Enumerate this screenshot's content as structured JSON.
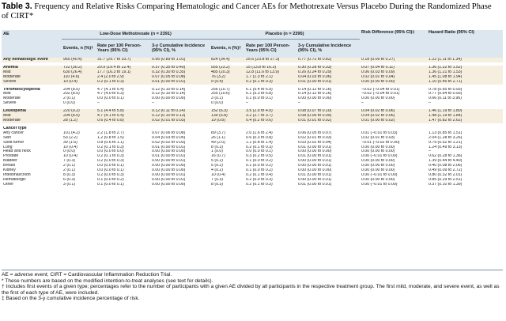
{
  "title": {
    "label": "Table 3.",
    "text": " Frequency and Relative Risks Comparing Hematologic and Cancer AEs for Methotrexate Versus Placebo During the Randomized Phase of CIRT*"
  },
  "header": {
    "ae": "AE",
    "group_mtx": "Low-Dose Methotrexate (n = 2391)",
    "group_placebo": "Placebo (n = 2395)",
    "risk_difference": "Risk Difference (95% CI)‡",
    "hazard_ratio": "Hazard Ratio (95% CI)",
    "events": "Events, n (%)†",
    "rate": "Rate per 100 Person-Years (95% CI)",
    "cumulative": "3-y Cumulative Incidence (95% CI), %"
  },
  "rows": [
    {
      "label": "Any hematologic event",
      "indent": 0,
      "bold": true,
      "shade": true,
      "mtx_events": "965 (40.4)",
      "mtx_rate": "31.7 (29.7 to 33.7)",
      "mtx_cum": "0.95 (0.89 to 1.01)",
      "pl_events": "824 (34.4)",
      "pl_rate": "25.6 (23.8 to 27.3)",
      "pl_cum": "0.77 (0.72 to 0.82)",
      "rd": "0.18 (0.09 to 0.27)",
      "hr": "1.22 (1.11 to 1.34)",
      "gap_before": false
    },
    {
      "label": "Anemia",
      "indent": 0,
      "bold": true,
      "shade": true,
      "mtx_events": "722 (30.2)",
      "mtx_rate": "20.9 (19.4 to 22.4)",
      "mtx_cum": "0.37 (0.35 to 0.40)",
      "pl_events": "555 (23.2)",
      "pl_rate": "15 (13.8 to 16.3)",
      "pl_cum": "0.30 (0.28 to 0.33)",
      "rd": "0.07 (0.04 to 0.11)",
      "hr": "1.36 (1.22 to 1.52)",
      "gap_before": true
    },
    {
      "label": "Mild",
      "indent": 1,
      "bold": false,
      "shade": true,
      "mtx_events": "630 (26.4)",
      "mtx_rate": "17.7 (16.3 to 19.1)",
      "mtx_cum": "0.32 (0.30 to 0.35)",
      "pl_events": "485 (20.3)",
      "pl_rate": "12.8 (11.6 to 13.9)",
      "pl_cum": "0.26 (0.24 to 0.29)",
      "rd": "0.06 (0.03 to 0.09)",
      "hr": "1.36 (1.21 to 1.53)",
      "gap_before": false
    },
    {
      "label": "Moderate",
      "indent": 1,
      "bold": false,
      "shade": true,
      "mtx_events": "110 (4.6)",
      "mtx_rate": "2.4 (2.0 to 2.9)",
      "mtx_cum": "0.07 (0.05 to 0.08)",
      "pl_events": "76 (3.2)",
      "pl_rate": "1.7 (1.3 to 2.1)",
      "pl_cum": "0.04 (0.03 to 0.06)",
      "rd": "0.02 (0.01 to 0.04)",
      "hr": "1.45 (1.08 to 1.94)",
      "gap_before": false
    },
    {
      "label": "Severe",
      "indent": 1,
      "bold": false,
      "shade": true,
      "mtx_events": "10 (0.4)",
      "mtx_rate": "0.2 (0.1 to 0.3)",
      "mtx_cum": "0.01 (0.00 to 0.01)",
      "pl_events": "9 (0.4)",
      "pl_rate": "0.2 (0.1 to 0.3)",
      "pl_cum": "0.01 (0.00 to 0.01)",
      "rd": "0.00 (0.00 to 0.00)",
      "hr": "1.10 (0.45 to 2.71)",
      "gap_before": false
    },
    {
      "label": "Thrombocytopenia",
      "indent": 0,
      "bold": true,
      "shade": false,
      "mtx_events": "204 (8.5)",
      "mtx_rate": "4.7 (4.1 to 5.4)",
      "mtx_cum": "0.12 (0.10 to 0.14)",
      "pl_events": "256 (10.7)",
      "pl_rate": "6.1 (5.4 to 6.9)",
      "pl_cum": "0.14 (0.12 to 0.16)",
      "rd": "−0.02 (−0.04 to 0.01)",
      "hr": "0.78 (0.65 to 0.93)",
      "gap_before": true
    },
    {
      "label": "Mild",
      "indent": 1,
      "bold": false,
      "shade": false,
      "mtx_events": "202 (8.5)",
      "mtx_rate": "4.7 (4.0 to 5.3)",
      "mtx_cum": "0.12 (0.10 to 0.14)",
      "pl_events": "255 (10.6)",
      "pl_rate": "6.1 (5.3 to 6.8)",
      "pl_cum": "0.14 (0.12 to 0.16)",
      "rd": "−0.02 (−0.04 to 0.01)",
      "hr": "0.77 (0.64 to 0.93)",
      "gap_before": false
    },
    {
      "label": "Moderate",
      "indent": 1,
      "bold": false,
      "shade": false,
      "mtx_events": "2 (0.1)",
      "mtx_rate": "0.0 (0.0 to 0.1)",
      "mtx_cum": "0.00 (0.00 to 0.00)",
      "pl_events": "3 (0.1)",
      "pl_rate": "0.1 (0.0 to 0.1)",
      "pl_cum": "0.00 (0.00 to 0.00)",
      "rd": "0.00 (0.00 to 0.00)",
      "hr": "0.66 (0.11 to 3.96)",
      "gap_before": false
    },
    {
      "label": "Severe",
      "indent": 1,
      "bold": false,
      "shade": false,
      "mtx_events": "0 (0.0)",
      "mtx_rate": "–",
      "mtx_cum": "–",
      "pl_events": "0 (0.0)",
      "pl_rate": "–",
      "pl_cum": "–",
      "rd": "–",
      "hr": "–",
      "gap_before": false
    },
    {
      "label": "Leukopenia",
      "indent": 0,
      "bold": true,
      "shade": true,
      "mtx_events": "220 (9.2)",
      "mtx_rate": "5.1 (4.4 to 5.8)",
      "mtx_cum": "0.12 (0.11 to 0.14)",
      "pl_events": "152 (6.3)",
      "pl_rate": "3.5 (2.9 to 4.0)",
      "pl_cum": "0.08 (0.07 to 0.10)",
      "rd": "0.04 (0.02 to 0.06)",
      "hr": "1.46 (1.19 to 1.80)",
      "gap_before": true
    },
    {
      "label": "Mild",
      "indent": 1,
      "bold": false,
      "shade": true,
      "mtx_events": "204 (8.5)",
      "mtx_rate": "4.7 (4.1 to 5.4)",
      "mtx_cum": "0.12 (0.10 to 0.13)",
      "pl_events": "139 (5.8)",
      "pl_rate": "3.2 (2.7 to 3.7)",
      "pl_cum": "0.08 (0.06 to 0.09)",
      "rd": "0.04 (0.02 to 0.06)",
      "hr": "1.48 (1.19 to 1.84)",
      "gap_before": false
    },
    {
      "label": "Moderate",
      "indent": 1,
      "bold": false,
      "shade": true,
      "mtx_events": "28 (1.2)",
      "mtx_rate": "0.6 (0.4 to 0.8)",
      "mtx_cum": "0.02 (0.01 to 0.03)",
      "pl_events": "19 (0.8)",
      "pl_rate": "0.4 (0.2 to 0.6)",
      "pl_cum": "0.01 (0.01 to 0.02)",
      "rd": "0.01 (0.00 to 0.02)",
      "hr": "1.47 (0.82 to 2.62)",
      "gap_before": false
    },
    {
      "label": "Cancer type",
      "indent": 0,
      "bold": true,
      "shade": false,
      "mtx_events": "",
      "mtx_rate": "",
      "mtx_cum": "",
      "pl_events": "",
      "pl_rate": "",
      "pl_cum": "",
      "rd": "",
      "hr": "",
      "gap_before": true
    },
    {
      "label": "Any cancer",
      "indent": 1,
      "bold": false,
      "shade": false,
      "mtx_events": "101 (4.2)",
      "mtx_rate": "2.2 (1.8 to 2.7)",
      "mtx_cum": "0.07 (0.06 to 0.08)",
      "pl_events": "89 (3.7)",
      "pl_rate": "2.0 (1.6 to 2.4)",
      "pl_cum": "0.06 (0.05 to 0.07)",
      "rd": "0.01 (−0.01 to 0.03)",
      "hr": "1.13 (0.85 to 1.51)",
      "gap_before": false
    },
    {
      "label": "Skin",
      "indent": 1,
      "bold": false,
      "shade": false,
      "mtx_events": "53 (2.2)",
      "mtx_rate": "1.2 (0.8 to 1.5)",
      "mtx_cum": "0.04 (0.03 to 0.05)",
      "pl_events": "26 (1.1)",
      "pl_rate": "0.6 (0.3 to 0.8)",
      "pl_cum": "0.02 (0.01 to 0.03)",
      "rd": "0.02 (0.01 to 0.03)",
      "hr": "2.04 (1.28 to 3.26)",
      "gap_before": false
    },
    {
      "label": "Solid tumor",
      "indent": 1,
      "bold": false,
      "shade": false,
      "mtx_events": "39 (1.6)",
      "mtx_rate": "0.8 (0.6 to 1.1)",
      "mtx_cum": "0.02 (0.02 to 0.03)",
      "pl_events": "49 (2.0)",
      "pl_rate": "1.1 (0.8 to 1.4)",
      "pl_cum": "0.03 (0.02 to 0.04)",
      "rd": "−0.01 (−0.02 to 0.00)",
      "hr": "0.79 (0.52 to 1.21)",
      "gap_before": false
    },
    {
      "label": "Lung",
      "indent": 2,
      "bold": false,
      "shade": false,
      "mtx_events": "10 (0.4)",
      "mtx_rate": "0.2 (0.1 to 0.3)",
      "mtx_cum": "0.01 (0.00 to 0.01)",
      "pl_events": "8 (0.3)",
      "pl_rate": "0.2 (0.1 to 0.3)",
      "pl_cum": "0.01 (0.00 to 0.01)",
      "rd": "0.00 (0.00 to 0.00)",
      "hr": "1.24 (0.49 to 3.13)",
      "gap_before": false
    },
    {
      "label": "Head and neck",
      "indent": 2,
      "bold": false,
      "shade": false,
      "mtx_events": "0 (0.0)",
      "mtx_rate": "0.0 (0.0 to 0.0)",
      "mtx_cum": "0.00 (0.00 to 0.00)",
      "pl_events": "1 (0.0)",
      "pl_rate": "0.0 (0.0 to 0.1)",
      "pl_cum": "0.00 (0.00 to 0.00)",
      "rd": "0.00 (0.00 to 0.00)",
      "hr": "–",
      "gap_before": false
    },
    {
      "label": "Prostate",
      "indent": 2,
      "bold": false,
      "shade": false,
      "mtx_events": "10 (0.4)",
      "mtx_rate": "0.2 (0.1 to 0.3)",
      "mtx_cum": "0.01 (0.00 to 0.01)",
      "pl_events": "16 (0.7)",
      "pl_rate": "0.3 (0.2 to 0.5)",
      "pl_cum": "0.01 (0.00 to 0.01)",
      "rd": "0.00 (−0.01 to 0.00)",
      "hr": "0.62 (0.28 to 1.36)",
      "gap_before": false
    },
    {
      "label": "Bladder",
      "indent": 2,
      "bold": false,
      "shade": false,
      "mtx_events": "7 (0.3)",
      "mtx_rate": "0.2 (0.0 to 0.3)",
      "mtx_cum": "0.00 (0.00 to 0.01)",
      "pl_events": "5 (0.2)",
      "pl_rate": "0.1 (0.0 to 0.2)",
      "pl_cum": "0.00 (0.00 to 0.01)",
      "rd": "0.00 (0.00 to 0.00)",
      "hr": "1.39 (0.44 to 4.40)",
      "gap_before": false
    },
    {
      "label": "Breast",
      "indent": 2,
      "bold": false,
      "shade": false,
      "mtx_events": "2 (0.1)",
      "mtx_rate": "0.0 (0.0 to 0.1)",
      "mtx_cum": "0.00 (0.00 to 0.00)",
      "pl_events": "5 (0.2)",
      "pl_rate": "0.1 (0.0 to 0.2)",
      "pl_cum": "0.00 (0.00 to 0.01)",
      "rd": "0.00 (0.00 to 0.00)",
      "hr": "0.40 (0.08 to 2.06)",
      "gap_before": false
    },
    {
      "label": "Kidney",
      "indent": 2,
      "bold": false,
      "shade": false,
      "mtx_events": "2 (0.1)",
      "mtx_rate": "0.0 (0.0 to 0.1)",
      "mtx_cum": "0.00 (0.00 to 0.00)",
      "pl_events": "4 (0.2)",
      "pl_rate": "0.1 (0.0 to 0.2)",
      "pl_cum": "0.00 (0.00 to 0.00)",
      "rd": "0.00 (0.00 to 0.00)",
      "hr": "0.49 (0.09 to 2.72)",
      "gap_before": false
    },
    {
      "label": "Intestinal/colon",
      "indent": 2,
      "bold": false,
      "shade": false,
      "mtx_events": "8 (0.3)",
      "mtx_rate": "0.2 (0.0 to 0.3)",
      "mtx_cum": "0.00 (0.00 to 0.01)",
      "pl_events": "10 (0.4)",
      "pl_rate": "0.2 (0.1 to 0.4)",
      "pl_cum": "0.01 (0.00 to 0.01)",
      "rd": "0.00 (−0.01 to 0.00)",
      "hr": "0.80 (0.32 to 2.01)",
      "gap_before": false
    },
    {
      "label": "Hematologic",
      "indent": 1,
      "bold": false,
      "shade": false,
      "mtx_events": "6 (0.3)",
      "mtx_rate": "0.1 (0.0 to 0.2)",
      "mtx_cum": "0.00 (0.00 to 0.01)",
      "pl_events": "7 (0.3)",
      "pl_rate": "0.2 (0.0 to 0.3)",
      "pl_cum": "0.00 (0.00 to 0.01)",
      "rd": "0.00 (0.00 to 0.00)",
      "hr": "0.85 (0.29 to 2.51)",
      "gap_before": false
    },
    {
      "label": "Other",
      "indent": 1,
      "bold": false,
      "shade": false,
      "mtx_events": "3 (0.1)",
      "mtx_rate": "0.1 (0.0 to 0.1)",
      "mtx_cum": "0.00 (0.00 to 0.00)",
      "pl_events": "8 (0.3)",
      "pl_rate": "0.2 (0.1 to 0.3)",
      "pl_cum": "0.01 (0.00 to 0.01)",
      "rd": "0.00 (−0.01 to 0.00)",
      "hr": "0.37 (0.10 to 1.39)",
      "gap_before": false
    }
  ],
  "notes": [
    "AE = adverse event; CIRT = Cardiovascular Inflammation Reduction Trial.",
    "* These numbers are based on the modified intention-to-treat analyses (see text for details).",
    "† Includes first events of a given type; percentages refer to the number of participants with a given AE divided by all participants in the respective treatment group. The first mild, moderate, and severe event, as well as the first of each type of AE, were included.",
    "‡ Based on the 3-y cumulative incidence percentage of risk."
  ]
}
